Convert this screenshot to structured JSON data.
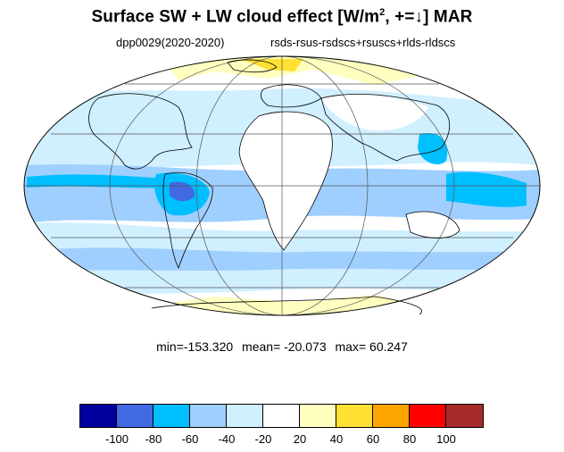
{
  "title": {
    "main": "Surface SW + LW cloud effect [W/m",
    "sup": "2",
    "tail": ", +=↓]  MAR"
  },
  "subtitle": {
    "left": "dpp0029(2020-2020)",
    "right": "rsds-rsus-rsdscs+rsuscs+rlds-rldscs"
  },
  "stats": {
    "min": "min=-153.320",
    "mean": "mean= -20.073",
    "max": "max=  60.247"
  },
  "colorbar": {
    "colors": [
      "#00009f",
      "#4169e1",
      "#00bfff",
      "#9fcfff",
      "#d0efff",
      "#ffffff",
      "#ffffc0",
      "#ffe033",
      "#ffa500",
      "#ff0000",
      "#a52a2a"
    ],
    "labels": [
      "-100",
      "-80",
      "-60",
      "-40",
      "-20",
      "20",
      "40",
      "60",
      "80",
      "100"
    ]
  },
  "map": {
    "projection": "Mollweide",
    "regions": [
      {
        "name": "mid-latitude bands",
        "color": "#d0efff"
      },
      {
        "name": "tropical convergence zone",
        "color": "#9fcfff"
      },
      {
        "name": "amazon convection core",
        "color": "#4169e1"
      },
      {
        "name": "arctic positive effect",
        "color": "#ffffc0"
      },
      {
        "name": "antarctic positive effect",
        "color": "#ffffc0"
      }
    ]
  }
}
